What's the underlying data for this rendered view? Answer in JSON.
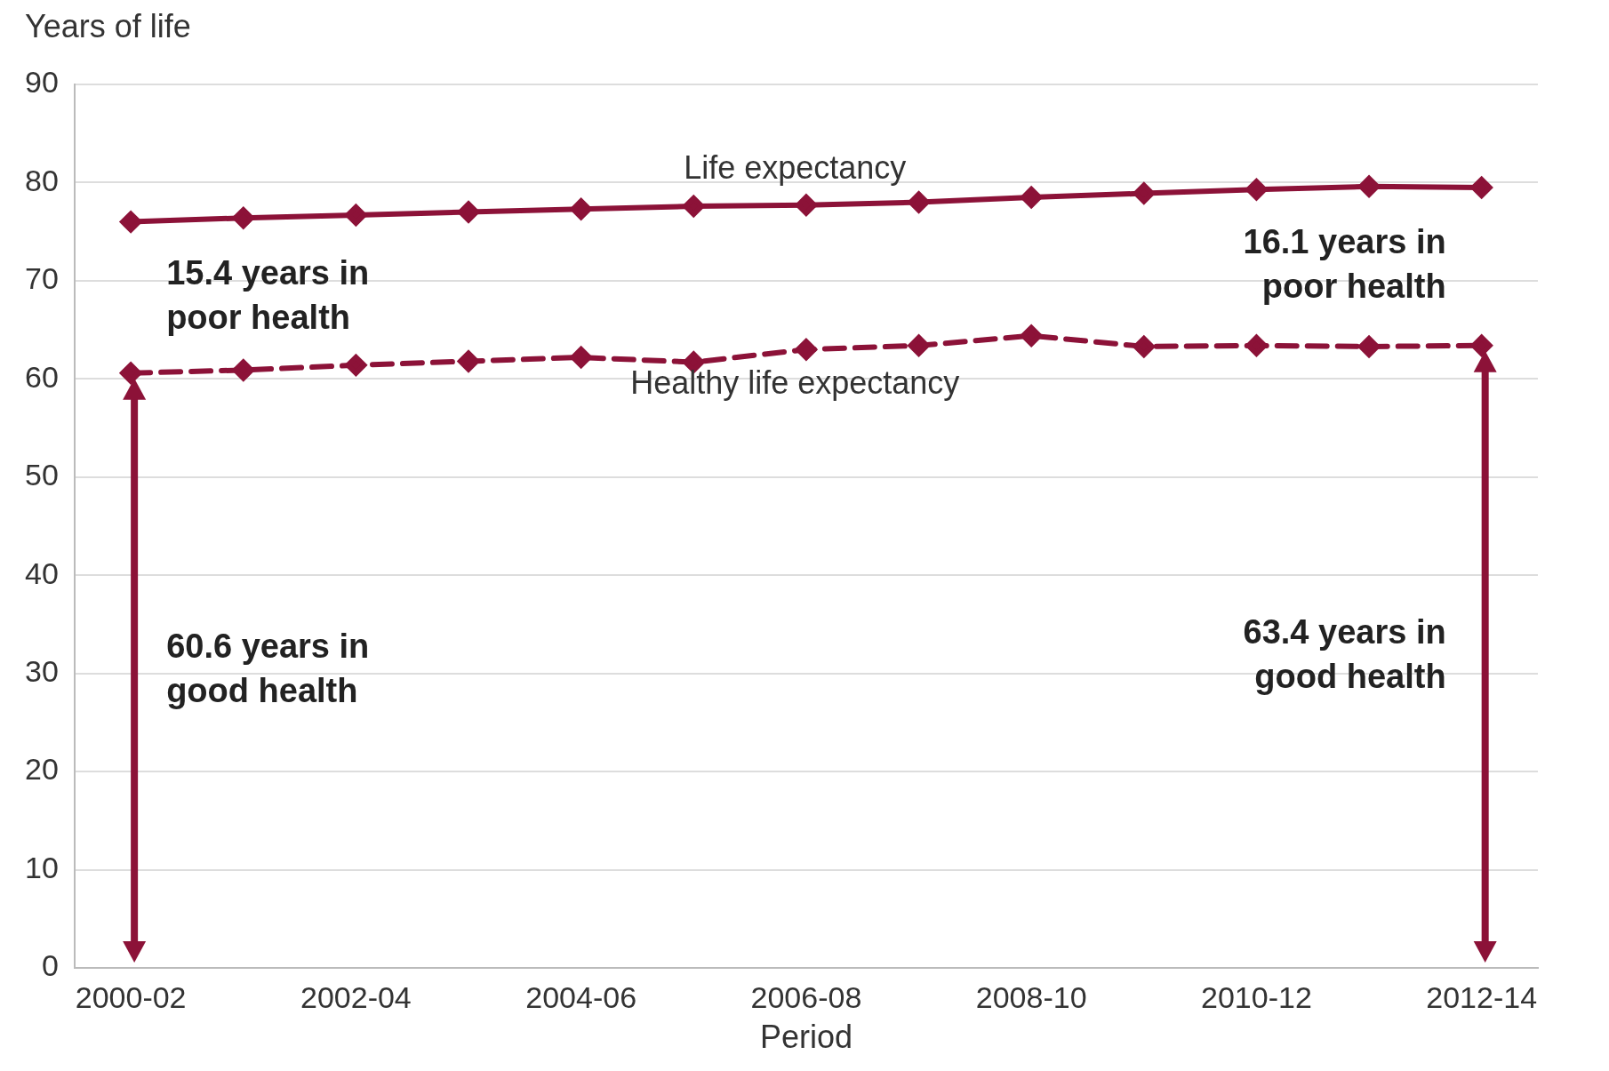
{
  "chart_data": {
    "type": "line",
    "xlabel": "Period",
    "ylabel": "Years of life",
    "categories": [
      "2000-02",
      null,
      "2002-04",
      null,
      "2004-06",
      null,
      "2006-08",
      null,
      "2008-10",
      null,
      "2010-12",
      null,
      "2012-14"
    ],
    "series": [
      {
        "name": "Life expectancy",
        "color": "#8c1238",
        "line_style": "solid",
        "values": [
          76.0,
          76.4,
          76.7,
          77.0,
          77.3,
          77.6,
          77.7,
          78.0,
          78.5,
          78.9,
          79.3,
          79.6,
          79.5
        ]
      },
      {
        "name": "Healthy life expectancy",
        "color": "#8c1238",
        "line_style": "dashed",
        "values": [
          60.6,
          60.9,
          61.4,
          61.8,
          62.2,
          61.7,
          63.0,
          63.4,
          64.4,
          63.3,
          63.4,
          63.3,
          63.4
        ]
      }
    ],
    "marker": "diamond",
    "legend": false,
    "grid": "y",
    "ylim": [
      0,
      90
    ],
    "yticks": [
      0,
      10,
      20,
      30,
      40,
      50,
      60,
      70,
      80,
      90
    ],
    "annotations": [
      "15.4 years in poor health",
      "60.6 years in good health",
      "16.1 years in poor health",
      "63.4 years in good health"
    ]
  }
}
